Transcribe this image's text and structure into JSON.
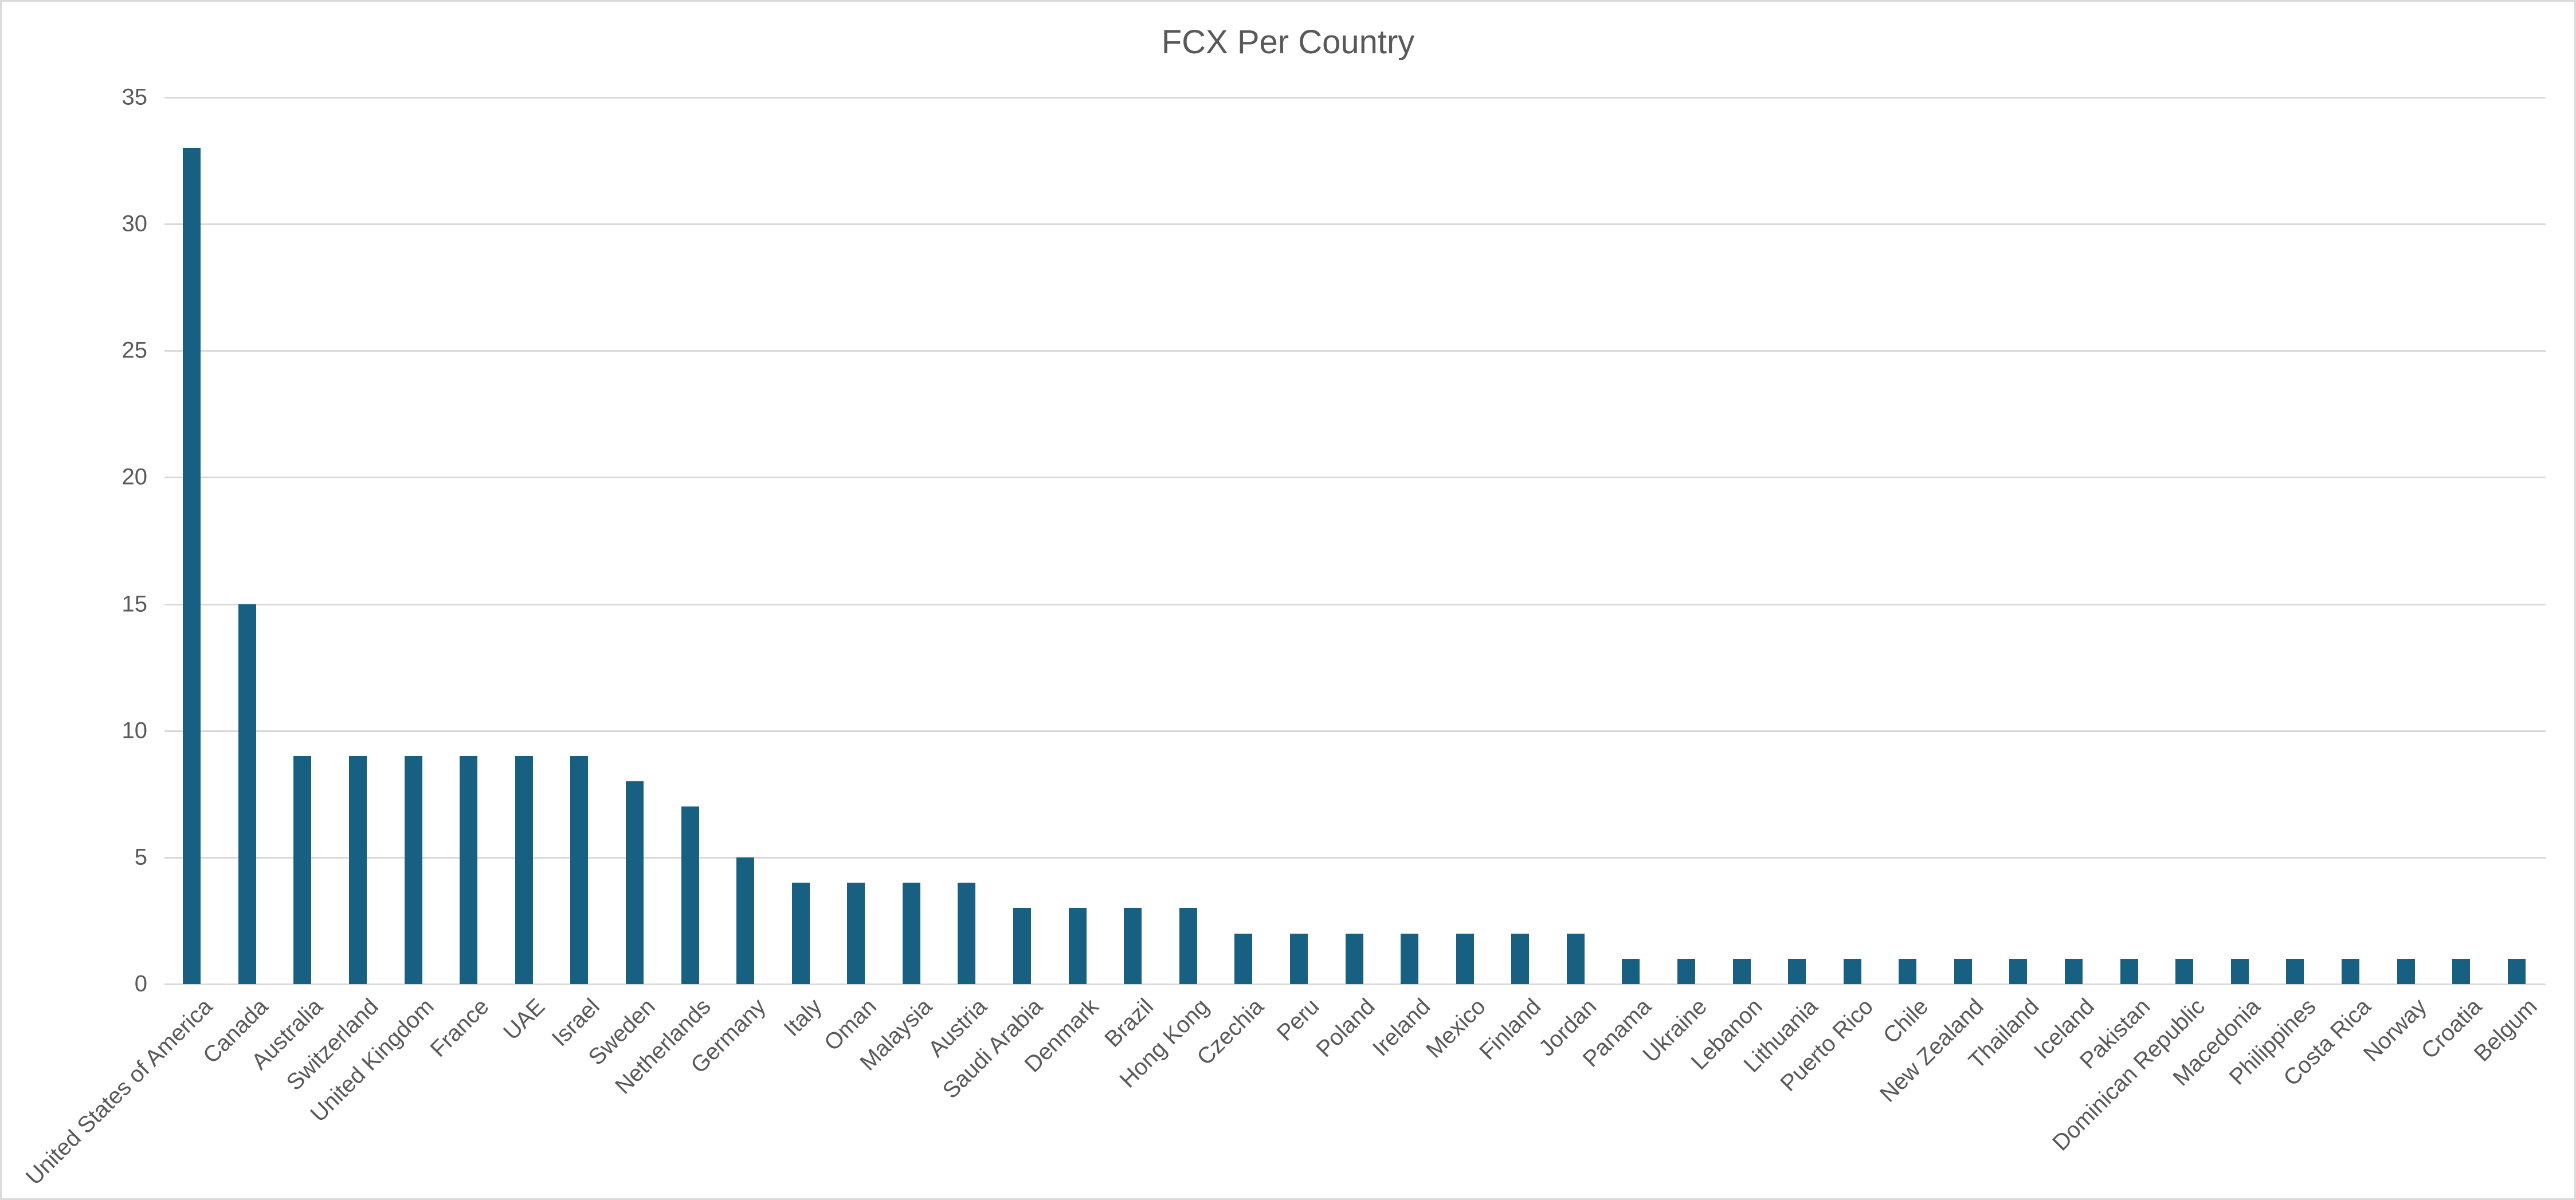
{
  "chart_data": {
    "type": "bar",
    "title": "FCX Per Country",
    "xlabel": "",
    "ylabel": "",
    "ylim": [
      0,
      35
    ],
    "yticks": [
      0,
      5,
      10,
      15,
      20,
      25,
      30,
      35
    ],
    "grid": true,
    "legend": "none",
    "bar_color": "#176082",
    "categories": [
      "United States of America",
      "Canada",
      "Australia",
      "Switzerland",
      "United Kingdom",
      "France",
      "UAE",
      "Israel",
      "Sweden",
      "Netherlands",
      "Germany",
      "Italy",
      "Oman",
      "Malaysia",
      "Austria",
      "Saudi Arabia",
      "Denmark",
      "Brazil",
      "Hong Kong",
      "Czechia",
      "Peru",
      "Poland",
      "Ireland",
      "Mexico",
      "Finland",
      "Jordan",
      "Panama",
      "Ukraine",
      "Lebanon",
      "Lithuania",
      "Puerto Rico",
      "Chile",
      "New Zealand",
      "Thailand",
      "Iceland",
      "Pakistan",
      "Dominican Republic",
      "Macedonia",
      "Philippines",
      "Costa Rica",
      "Norway",
      "Croatia",
      "Belgum"
    ],
    "values": [
      33,
      15,
      9,
      9,
      9,
      9,
      9,
      9,
      8,
      7,
      5,
      4,
      4,
      4,
      4,
      3,
      3,
      3,
      3,
      2,
      2,
      2,
      2,
      2,
      2,
      2,
      1,
      1,
      1,
      1,
      1,
      1,
      1,
      1,
      1,
      1,
      1,
      1,
      1,
      1,
      1,
      1,
      1
    ]
  },
  "colors": {
    "bar": "#176082",
    "grid": "#d9d9d9",
    "text": "#595959",
    "border": "#d9d9d9"
  }
}
